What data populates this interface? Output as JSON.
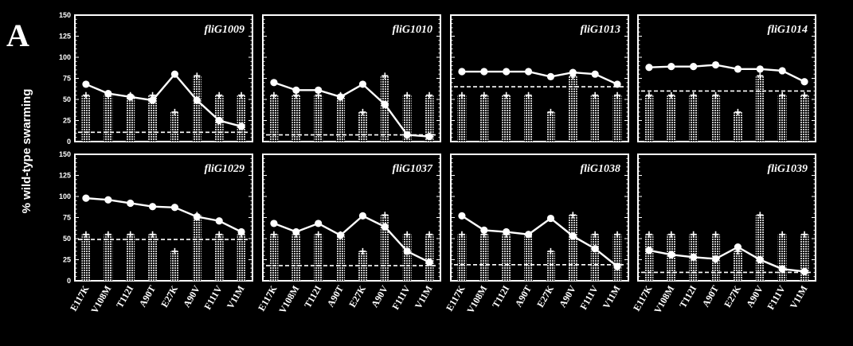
{
  "figure_label": "A",
  "ylabel": "% wild-type swarming",
  "colors": {
    "background": "#000000",
    "foreground": "#ffffff",
    "hatch": "#bdbdbd"
  },
  "chart_data": {
    "type": "bar",
    "ylim": [
      0,
      150
    ],
    "yticks": [
      0,
      25,
      50,
      75,
      100,
      125,
      150
    ],
    "categories": [
      "E117K",
      "V108M",
      "T112I",
      "A90T",
      "E27K",
      "A90V",
      "F111V",
      "V11M"
    ],
    "grid": false,
    "legend": "none",
    "panels": [
      {
        "title": "fliG1009",
        "bars": [
          55,
          55,
          55,
          55,
          35,
          78,
          55,
          55
        ],
        "line": [
          68,
          57,
          53,
          49,
          80,
          49,
          25,
          18
        ],
        "baseline": 11
      },
      {
        "title": "fliG1010",
        "bars": [
          55,
          55,
          55,
          55,
          35,
          78,
          55,
          55
        ],
        "line": [
          70,
          61,
          61,
          53,
          68,
          44,
          8,
          6
        ],
        "baseline": 8
      },
      {
        "title": "fliG1013",
        "bars": [
          55,
          55,
          55,
          55,
          35,
          78,
          55,
          55
        ],
        "line": [
          83,
          83,
          83,
          83,
          77,
          82,
          80,
          68
        ],
        "baseline": 65
      },
      {
        "title": "fliG1014",
        "bars": [
          55,
          55,
          55,
          55,
          35,
          78,
          55,
          55
        ],
        "line": [
          88,
          89,
          89,
          91,
          86,
          86,
          84,
          71
        ],
        "baseline": 60
      },
      {
        "title": "fliG1029",
        "bars": [
          55,
          55,
          55,
          55,
          35,
          78,
          55,
          55
        ],
        "line": [
          98,
          96,
          92,
          88,
          87,
          76,
          71,
          58
        ],
        "baseline": 49
      },
      {
        "title": "fliG1037",
        "bars": [
          55,
          55,
          55,
          55,
          35,
          78,
          55,
          55
        ],
        "line": [
          68,
          58,
          68,
          54,
          77,
          64,
          35,
          22
        ],
        "baseline": 18
      },
      {
        "title": "fliG1038",
        "bars": [
          55,
          55,
          55,
          55,
          35,
          78,
          55,
          55
        ],
        "line": [
          77,
          60,
          58,
          55,
          74,
          53,
          38,
          17
        ],
        "baseline": 19
      },
      {
        "title": "fliG1039",
        "bars": [
          55,
          55,
          55,
          55,
          35,
          78,
          55,
          55
        ],
        "line": [
          36,
          31,
          28,
          26,
          40,
          25,
          14,
          11
        ],
        "baseline": 10
      }
    ]
  }
}
